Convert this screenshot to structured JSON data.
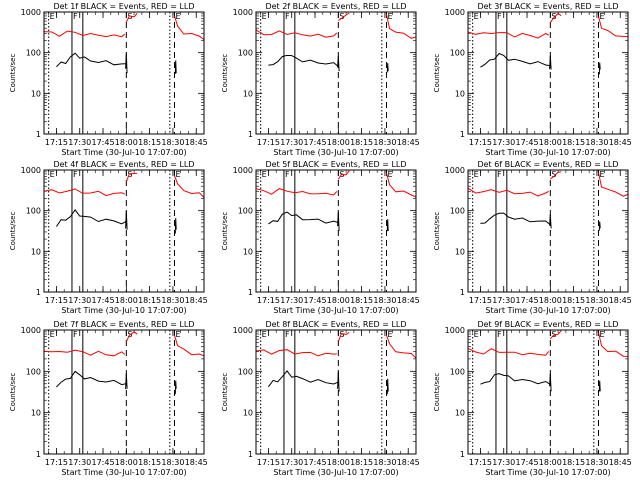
{
  "chart_data": {
    "type": "line",
    "panels": [
      {
        "title": "Det 1f BLACK = Events, RED = LLD"
      },
      {
        "title": "Det 2f BLACK = Events, RED = LLD"
      },
      {
        "title": "Det 3f BLACK = Events, RED = LLD"
      },
      {
        "title": "Det 4f BLACK = Events, RED = LLD"
      },
      {
        "title": "Det 5f BLACK = Events, RED = LLD"
      },
      {
        "title": "Det 6f BLACK = Events, RED = LLD"
      },
      {
        "title": "Det 7f BLACK = Events, RED = LLD"
      },
      {
        "title": "Det 8f BLACK = Events, RED = LLD"
      },
      {
        "title": "Det 9f BLACK = Events, RED = LLD"
      }
    ],
    "xlabel": "Start Time (30-Jul-10 17:07:00)",
    "ylabel": "Counts/sec",
    "y_scale": "log",
    "ylim": [
      1,
      1000
    ],
    "y_ticks": [
      {
        "value": 1,
        "label": "1"
      },
      {
        "value": 10,
        "label": "10"
      },
      {
        "value": 100,
        "label": "100"
      },
      {
        "value": 1000,
        "label": "1000"
      }
    ],
    "xlim_minutes": [
      0,
      103
    ],
    "x_ticks": [
      {
        "value": 8,
        "label": "17:15"
      },
      {
        "value": 23,
        "label": "17:30"
      },
      {
        "value": 38,
        "label": "17:45"
      },
      {
        "value": 53,
        "label": "18:00"
      },
      {
        "value": 68,
        "label": "18:15"
      },
      {
        "value": 83,
        "label": "18:30"
      },
      {
        "value": 98,
        "label": "18:45"
      }
    ],
    "markers": [
      {
        "x": 3,
        "style": "dotted",
        "label": "E"
      },
      {
        "x": 18,
        "style": "solid",
        "label": "F"
      },
      {
        "x": 25,
        "style": "solid",
        "label": ""
      },
      {
        "x": 53,
        "style": "dashed",
        "label": "S"
      },
      {
        "x": 81,
        "style": "dotted",
        "label": ""
      },
      {
        "x": 84,
        "style": "dashed",
        "label": "E"
      }
    ],
    "series": [
      {
        "name": "LLD",
        "color": "#ff0000",
        "segments": [
          {
            "x": [
              0,
              5,
              10,
              15,
              20,
              25,
              30,
              35,
              40,
              45,
              50,
              52
            ],
            "y": [
              330,
              300,
              280,
              320,
              310,
              290,
              270,
              280,
              260,
              250,
              270,
              280
            ]
          },
          {
            "x": [
              53,
              55,
              58,
              60
            ],
            "y": [
              560,
              750,
              840,
              880
            ]
          },
          {
            "x": [
              84,
              86,
              90,
              95,
              100,
              103
            ],
            "y": [
              800,
              420,
              320,
              280,
              250,
              230
            ]
          }
        ]
      },
      {
        "name": "Events",
        "color": "#000000",
        "segments": [
          {
            "x": [
              8,
              11,
              14,
              17,
              20,
              23,
              26,
              30,
              35,
              40,
              45,
              50,
              53
            ],
            "y": [
              45,
              55,
              60,
              75,
              95,
              80,
              72,
              65,
              60,
              58,
              55,
              52,
              50
            ]
          },
          {
            "x": [
              52.5,
              53,
              53.5
            ],
            "y": [
              40,
              90,
              35
            ]
          },
          {
            "x": [
              84.5,
              84.8,
              85.1
            ],
            "y": [
              30,
              60,
              35
            ]
          }
        ]
      }
    ]
  }
}
